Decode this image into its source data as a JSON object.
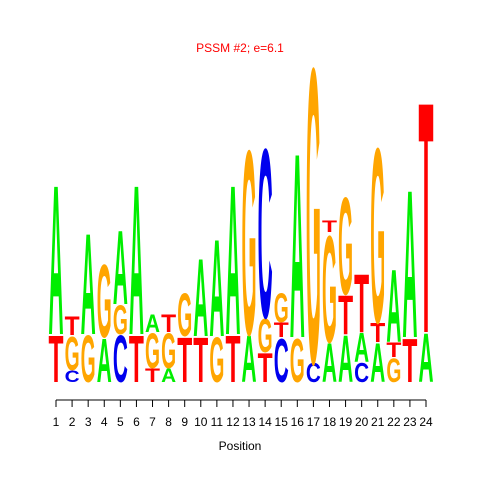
{
  "chart_data": {
    "type": "logo",
    "title": "PSSM #2; e=6.1",
    "x_label": "Position",
    "x": [
      1,
      2,
      3,
      4,
      5,
      6,
      7,
      8,
      9,
      10,
      11,
      12,
      13,
      14,
      15,
      16,
      17,
      18,
      19,
      20,
      21,
      22,
      23,
      24
    ],
    "colors": {
      "A": "#00ee00",
      "C": "#0000ee",
      "G": "#ffa500",
      "T": "#ff0000"
    },
    "positions": [
      {
        "letters": [
          "T",
          "A"
        ],
        "heights": [
          0.48,
          1.54
        ]
      },
      {
        "letters": [
          "C",
          "G",
          "T"
        ],
        "heights": [
          0.12,
          0.35,
          0.19
        ]
      },
      {
        "letters": [
          "G",
          "A"
        ],
        "heights": [
          0.48,
          1.04
        ]
      },
      {
        "letters": [
          "A",
          "G"
        ],
        "heights": [
          0.45,
          0.75
        ]
      },
      {
        "letters": [
          "C",
          "G",
          "A"
        ],
        "heights": [
          0.48,
          0.3,
          0.76
        ]
      },
      {
        "letters": [
          "T",
          "A"
        ],
        "heights": [
          0.48,
          1.54
        ]
      },
      {
        "letters": [
          "T",
          "G",
          "A"
        ],
        "heights": [
          0.14,
          0.36,
          0.18
        ]
      },
      {
        "letters": [
          "A",
          "G",
          "T"
        ],
        "heights": [
          0.14,
          0.36,
          0.18
        ]
      },
      {
        "letters": [
          "T",
          "G"
        ],
        "heights": [
          0.46,
          0.44
        ]
      },
      {
        "letters": [
          "T",
          "A"
        ],
        "heights": [
          0.46,
          0.8
        ]
      },
      {
        "letters": [
          "G",
          "A"
        ],
        "heights": [
          0.46,
          1.0
        ]
      },
      {
        "letters": [
          "T",
          "A"
        ],
        "heights": [
          0.48,
          1.54
        ]
      },
      {
        "letters": [
          "A",
          "G"
        ],
        "heights": [
          0.48,
          1.9
        ]
      },
      {
        "letters": [
          "T",
          "G",
          "C"
        ],
        "heights": [
          0.3,
          0.35,
          1.74
        ]
      },
      {
        "letters": [
          "C",
          "T",
          "G"
        ],
        "heights": [
          0.45,
          0.15,
          0.3
        ]
      },
      {
        "letters": [
          "G",
          "A"
        ],
        "heights": [
          0.45,
          1.9
        ]
      },
      {
        "letters": [
          "C",
          "G"
        ],
        "heights": [
          0.2,
          3.04
        ]
      },
      {
        "letters": [
          "A",
          "G",
          "T"
        ],
        "heights": [
          0.4,
          1.1,
          0.12
        ]
      },
      {
        "letters": [
          "A",
          "T",
          "G"
        ],
        "heights": [
          0.48,
          0.4,
          1.0
        ]
      },
      {
        "letters": [
          "C",
          "A",
          "T"
        ],
        "heights": [
          0.2,
          0.3,
          0.6
        ]
      },
      {
        "letters": [
          "A",
          "T",
          "G"
        ],
        "heights": [
          0.4,
          0.2,
          1.8
        ]
      },
      {
        "letters": [
          "G",
          "T",
          "A"
        ],
        "heights": [
          0.25,
          0.15,
          0.75
        ]
      },
      {
        "letters": [
          "T",
          "A"
        ],
        "heights": [
          0.45,
          1.52
        ]
      },
      {
        "letters": [
          "A",
          "T"
        ],
        "heights": [
          0.5,
          2.38
        ]
      }
    ]
  }
}
